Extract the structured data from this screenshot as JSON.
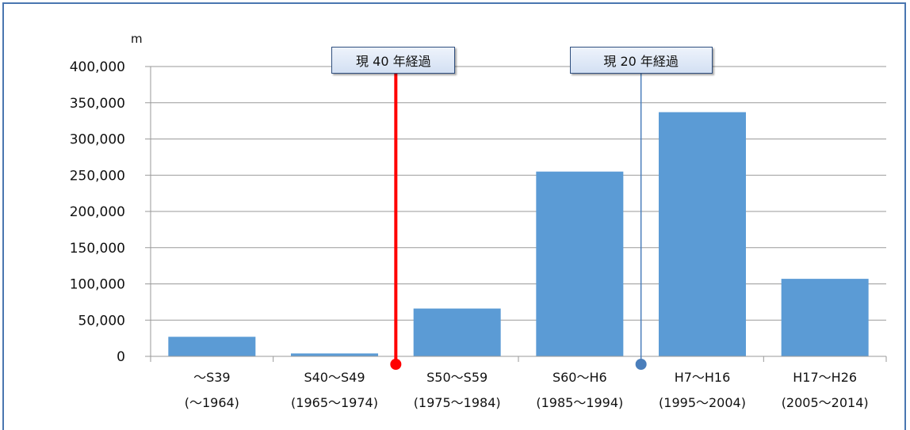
{
  "chart_data": {
    "type": "bar",
    "unit_label": "m",
    "categories": [
      [
        "～S39",
        "(～1964)"
      ],
      [
        "S40～S49",
        "(1965～1974)"
      ],
      [
        "S50～S59",
        "(1975～1984)"
      ],
      [
        "S60～H6",
        "(1985～1994)"
      ],
      [
        "H7～H16",
        "(1995～2004)"
      ],
      [
        "H17～H26",
        "(2005～2014)"
      ]
    ],
    "values": [
      27000,
      4000,
      66000,
      255000,
      337000,
      107000
    ],
    "ylim": [
      0,
      400000
    ],
    "yticks": [
      0,
      50000,
      100000,
      150000,
      200000,
      250000,
      300000,
      350000,
      400000
    ],
    "ytick_labels": [
      "0",
      "50,000",
      "100,000",
      "150,000",
      "200,000",
      "250,000",
      "300,000",
      "350,000",
      "400,000"
    ],
    "grid": true,
    "bar_color": "#5b9bd5",
    "annotations": [
      {
        "label": "現 40 年経過",
        "between_categories": [
          1,
          2
        ],
        "line_color": "#ff0000",
        "marker_color": "#ff0000"
      },
      {
        "label": "現 20 年経過",
        "between_categories": [
          3,
          4
        ],
        "line_color": "#4a7ebb",
        "marker_color": "#4a7ebb"
      }
    ]
  }
}
